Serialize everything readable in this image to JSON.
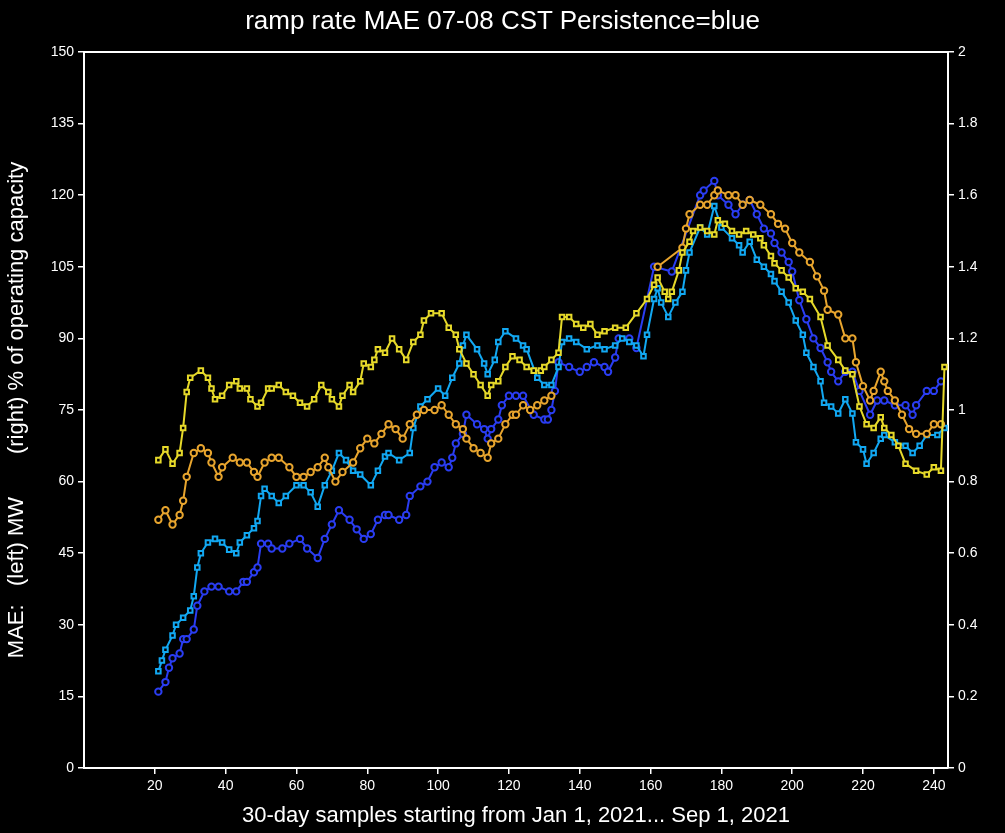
{
  "chart_data": {
    "type": "line",
    "title": "ramp rate MAE 07-08 CST Persistence=blue",
    "xlabel": "30-day samples starting from Jan 1, 2021... Sep 1, 2021",
    "ylabel": "MAE:   (left) MW       (right) % of operating capacity",
    "xlim": [
      0,
      244
    ],
    "xticks": [
      20,
      40,
      60,
      80,
      100,
      120,
      140,
      160,
      180,
      200,
      220,
      240
    ],
    "ylim": [
      0,
      150
    ],
    "yticks": [
      0,
      15,
      30,
      45,
      60,
      75,
      90,
      105,
      120,
      135,
      150
    ],
    "y2lim": [
      0,
      2
    ],
    "y2ticks": [
      0,
      0.2,
      0.4,
      0.6,
      0.8,
      1,
      1.2,
      1.4,
      1.6,
      1.8,
      2
    ],
    "series": [
      {
        "axis": "y2",
        "marker": "square",
        "color": "#e6d92a",
        "x": [
          21,
          23,
          25,
          27,
          28,
          29,
          30,
          33,
          35,
          36,
          37,
          39,
          41,
          43,
          44,
          46,
          47,
          49,
          50,
          52,
          53,
          55,
          57,
          59,
          61,
          63,
          65,
          67,
          69,
          70,
          72,
          73,
          75,
          76,
          78,
          79,
          81,
          82,
          83,
          85,
          87,
          89,
          91,
          93,
          95,
          96,
          98,
          101,
          103,
          105,
          106,
          108,
          110,
          112,
          114,
          115,
          117,
          119,
          121,
          123,
          125,
          127,
          129,
          130,
          132,
          134,
          135,
          137,
          139,
          141,
          143,
          145,
          147,
          150,
          153,
          156,
          159,
          161,
          162,
          164,
          165,
          166,
          168,
          169,
          171,
          172,
          174,
          176,
          178,
          179,
          181,
          183,
          185,
          187,
          189,
          191,
          192,
          194,
          195,
          197,
          199,
          201,
          203,
          205,
          208,
          210,
          213,
          215,
          217,
          219,
          221,
          223,
          225,
          226,
          228,
          230,
          232,
          235,
          238,
          240,
          242,
          243
        ],
        "values": [
          0.86,
          0.89,
          0.85,
          0.88,
          0.95,
          1.05,
          1.09,
          1.11,
          1.09,
          1.06,
          1.03,
          1.04,
          1.07,
          1.08,
          1.06,
          1.06,
          1.03,
          1.01,
          1.02,
          1.06,
          1.06,
          1.07,
          1.05,
          1.04,
          1.02,
          1.01,
          1.03,
          1.07,
          1.05,
          1.03,
          1.01,
          1.04,
          1.07,
          1.05,
          1.08,
          1.13,
          1.12,
          1.14,
          1.17,
          1.16,
          1.2,
          1.17,
          1.14,
          1.19,
          1.21,
          1.25,
          1.27,
          1.27,
          1.23,
          1.21,
          1.17,
          1.13,
          1.1,
          1.07,
          1.04,
          1.07,
          1.08,
          1.12,
          1.15,
          1.14,
          1.12,
          1.11,
          1.11,
          1.12,
          1.14,
          1.16,
          1.26,
          1.26,
          1.24,
          1.23,
          1.24,
          1.21,
          1.22,
          1.23,
          1.23,
          1.27,
          1.31,
          1.35,
          1.37,
          1.33,
          1.31,
          1.33,
          1.39,
          1.44,
          1.47,
          1.5,
          1.51,
          1.5,
          1.49,
          1.53,
          1.52,
          1.5,
          1.49,
          1.5,
          1.49,
          1.48,
          1.46,
          1.43,
          1.41,
          1.39,
          1.37,
          1.34,
          1.33,
          1.31,
          1.26,
          1.18,
          1.14,
          1.11,
          1.1,
          1.01,
          0.96,
          0.95,
          0.98,
          0.95,
          0.93,
          0.9,
          0.85,
          0.83,
          0.82,
          0.84,
          0.83,
          1.12
        ]
      },
      {
        "axis": "y",
        "marker": "circle",
        "color": "#e8a52e",
        "x": [
          21,
          23,
          25,
          27,
          28,
          29,
          31,
          33,
          35,
          36,
          38,
          39,
          42,
          44,
          46,
          48,
          49,
          51,
          53,
          55,
          58,
          60,
          62,
          64,
          66,
          68,
          69,
          71,
          73,
          76,
          78,
          80,
          82,
          84,
          86,
          88,
          90,
          92,
          94,
          96,
          99,
          101,
          103,
          105,
          107,
          108,
          110,
          112,
          114,
          115,
          117,
          119,
          121,
          122,
          124,
          126,
          128,
          130,
          132,
          145,
          162,
          169,
          170,
          171,
          174,
          176,
          178,
          179,
          182,
          184,
          186,
          188,
          191,
          194,
          196,
          198,
          200,
          202,
          205,
          207,
          209,
          210,
          213,
          215,
          217,
          218,
          220,
          222,
          223,
          225,
          226,
          227,
          229,
          231,
          233,
          235,
          238,
          240,
          242
        ],
        "values": [
          52,
          54,
          51,
          53,
          56,
          61,
          66,
          67,
          66,
          64,
          61,
          63,
          65,
          64,
          64,
          62,
          61,
          64,
          65,
          65,
          63,
          61,
          61,
          62,
          63,
          65,
          63,
          60,
          62,
          64,
          67,
          69,
          68,
          70,
          72,
          71,
          69,
          72,
          74,
          75,
          75,
          76,
          74,
          72,
          71,
          69,
          67,
          66,
          65,
          68,
          69,
          72,
          74,
          74,
          76,
          75,
          76,
          77,
          78,
          null,
          105,
          109,
          113,
          116,
          118,
          118,
          120,
          121,
          120,
          120,
          118,
          119,
          118,
          116,
          114,
          113,
          110,
          108,
          106,
          103,
          100,
          96,
          95,
          90,
          90,
          85,
          80,
          77,
          79,
          83,
          81,
          79,
          77,
          74,
          71,
          70,
          70,
          72,
          72
        ]
      },
      {
        "axis": "y2",
        "marker": "square",
        "color": "#12a8f2",
        "x": [
          21,
          22,
          23,
          25,
          26,
          28,
          30,
          31,
          32,
          33,
          35,
          37,
          39,
          41,
          43,
          44,
          46,
          48,
          49,
          50,
          51,
          53,
          55,
          57,
          60,
          62,
          64,
          66,
          68,
          70,
          72,
          74,
          76,
          78,
          81,
          83,
          85,
          86,
          89,
          92,
          93,
          95,
          97,
          100,
          102,
          104,
          106,
          107,
          108,
          111,
          113,
          114,
          116,
          117,
          119,
          122,
          124,
          125,
          128,
          130,
          132,
          134,
          135,
          137,
          139,
          142,
          145,
          147,
          150,
          152,
          154,
          156,
          158,
          159,
          161,
          162,
          163,
          165,
          167,
          169,
          170,
          171,
          174,
          176,
          178,
          180,
          183,
          185,
          186,
          188,
          190,
          192,
          194,
          195,
          197,
          199,
          201,
          203,
          204,
          206,
          208,
          209,
          211,
          213,
          215,
          217,
          218,
          220,
          221,
          223,
          225,
          226,
          229,
          232,
          234,
          236,
          238,
          241,
          243
        ],
        "values": [
          0.27,
          0.3,
          0.33,
          0.37,
          0.4,
          0.42,
          0.44,
          0.48,
          0.56,
          0.6,
          0.63,
          0.64,
          0.63,
          0.61,
          0.6,
          0.63,
          0.65,
          0.67,
          0.69,
          0.76,
          0.78,
          0.76,
          0.74,
          0.76,
          0.79,
          0.79,
          0.77,
          0.73,
          0.79,
          0.83,
          0.88,
          0.86,
          0.83,
          0.82,
          0.79,
          0.83,
          0.87,
          0.88,
          0.86,
          0.88,
          0.95,
          1.01,
          1.03,
          1.06,
          1.04,
          1.09,
          1.13,
          1.18,
          1.21,
          1.17,
          1.13,
          1.1,
          1.14,
          1.19,
          1.22,
          1.2,
          1.18,
          1.17,
          1.09,
          1.07,
          1.07,
          1.12,
          1.19,
          1.2,
          1.19,
          1.17,
          1.18,
          1.17,
          1.18,
          1.2,
          1.19,
          1.18,
          1.15,
          1.21,
          1.31,
          1.34,
          1.3,
          1.26,
          1.3,
          1.33,
          1.39,
          1.44,
          1.51,
          1.49,
          1.57,
          1.51,
          1.48,
          1.46,
          1.44,
          1.47,
          1.42,
          1.4,
          1.38,
          1.36,
          1.33,
          1.3,
          1.25,
          1.21,
          1.16,
          1.12,
          1.08,
          1.02,
          1.01,
          0.99,
          1.03,
          0.99,
          0.91,
          0.89,
          0.85,
          0.88,
          0.92,
          0.93,
          0.91,
          0.9,
          0.88,
          0.9,
          0.93,
          0.93,
          0.95
        ]
      },
      {
        "axis": "y",
        "marker": "circle",
        "color": "#2a3df2",
        "x": [
          21,
          23,
          24,
          25,
          27,
          28,
          29,
          31,
          32,
          34,
          36,
          38,
          41,
          43,
          45,
          46,
          48,
          49,
          50,
          52,
          53,
          56,
          58,
          61,
          63,
          66,
          68,
          70,
          72,
          75,
          77,
          79,
          81,
          83,
          85,
          86,
          89,
          91,
          92,
          95,
          97,
          99,
          101,
          103,
          104,
          105,
          107,
          108,
          111,
          113,
          114,
          115,
          117,
          118,
          120,
          122,
          124,
          127,
          130,
          131,
          132,
          133,
          134,
          137,
          140,
          142,
          144,
          147,
          148,
          150,
          151,
          154,
          156,
          161,
          166,
          174,
          175,
          178,
          179,
          182,
          184,
          186,
          188,
          190,
          192,
          194,
          195,
          197,
          199,
          200,
          202,
          204,
          206,
          208,
          210,
          211,
          213,
          215,
          217,
          219,
          222,
          224,
          226,
          229,
          232,
          234,
          235,
          238,
          240,
          242
        ],
        "values": [
          16,
          18,
          21,
          23,
          24,
          27,
          27,
          29,
          34,
          37,
          38,
          38,
          37,
          37,
          39,
          39,
          41,
          42,
          47,
          47,
          46,
          46,
          47,
          48,
          46,
          44,
          48,
          51,
          54,
          52,
          50,
          48,
          49,
          52,
          53,
          53,
          52,
          53,
          57,
          59,
          60,
          63,
          64,
          63,
          65,
          68,
          70,
          74,
          72,
          71,
          69,
          71,
          73,
          76,
          78,
          78,
          78,
          74,
          73,
          73,
          75,
          79,
          85,
          84,
          83,
          84,
          85,
          84,
          83,
          86,
          90,
          90,
          88,
          105,
          104,
          120,
          121,
          123,
          120,
          118,
          116,
          118,
          119,
          116,
          113,
          112,
          110,
          108,
          106,
          104,
          98,
          94,
          90,
          88,
          85,
          83,
          81,
          83,
          83,
          79,
          74,
          77,
          77,
          76,
          76,
          74,
          76,
          79,
          79,
          81
        ]
      }
    ]
  }
}
